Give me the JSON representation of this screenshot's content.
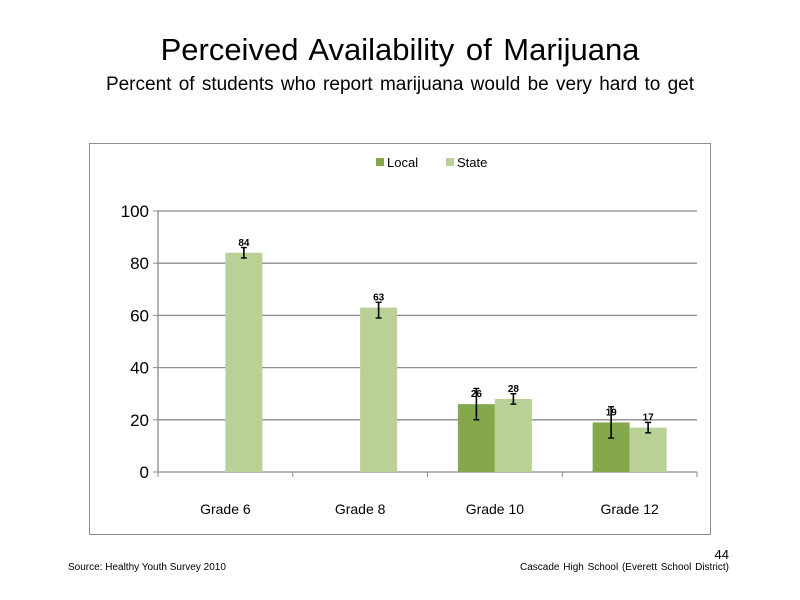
{
  "slide": {
    "title": "Perceived  Availability  of Marijuana",
    "subtitle": "Percent of students  who  report marijuana  would be very hard to get",
    "source": "Source: Healthy Youth Survey 2010",
    "school": "Cascade High School (Everett School District)",
    "page_number": "44"
  },
  "chart_data": {
    "type": "bar",
    "categories": [
      "Grade 6",
      "Grade 8",
      "Grade 10",
      "Grade 12"
    ],
    "series": [
      {
        "name": "Local",
        "color": "#86a84c",
        "values": [
          null,
          null,
          26,
          19
        ],
        "error_low": [
          null,
          null,
          20,
          13
        ],
        "error_high": [
          null,
          null,
          32,
          25
        ]
      },
      {
        "name": "State",
        "color": "#b9d096",
        "values": [
          84,
          63,
          28,
          17
        ],
        "error_low": [
          82,
          59,
          26,
          15
        ],
        "error_high": [
          86,
          65,
          30,
          19
        ]
      }
    ],
    "data_labels": [
      [
        "",
        "",
        "26",
        "19"
      ],
      [
        "84",
        "63",
        "28",
        "17"
      ]
    ],
    "yticks": [
      "0",
      "20",
      "40",
      "60",
      "80",
      "100"
    ],
    "ylim": [
      0,
      100
    ],
    "title": "",
    "xlabel": "",
    "ylabel": "",
    "grid": true,
    "legend_position": "top-center"
  }
}
